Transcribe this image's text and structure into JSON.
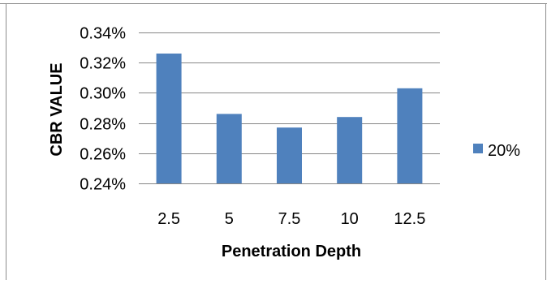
{
  "chart_data": {
    "type": "bar",
    "categories": [
      "2.5",
      "5",
      "7.5",
      "10",
      "12.5"
    ],
    "series": [
      {
        "name": "20%",
        "values": [
          0.326,
          0.286,
          0.277,
          0.284,
          0.303
        ],
        "color": "#4F81BD"
      }
    ],
    "xlabel": "Penetration Depth",
    "ylabel": "CBR VALUE",
    "ylim": [
      0.24,
      0.34
    ],
    "yticks": [
      0.24,
      0.26,
      0.28,
      0.3,
      0.32,
      0.34
    ],
    "ytick_labels": [
      "0.24%",
      "0.26%",
      "0.28%",
      "0.30%",
      "0.32%",
      "0.34%"
    ],
    "y_unit_suffix": "%",
    "grid": true,
    "legend_placement": "right"
  }
}
